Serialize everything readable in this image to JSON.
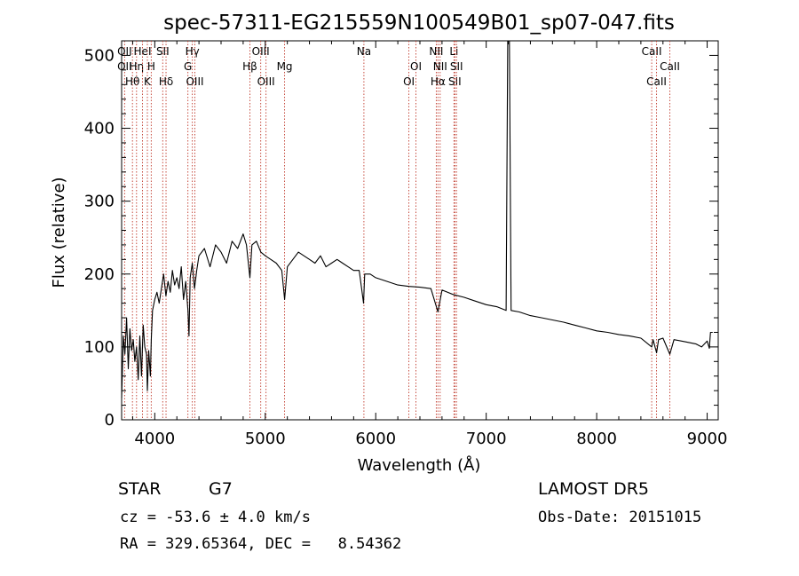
{
  "chart_data": {
    "type": "line",
    "title": "spec-57311-EG215559N100549B01_sp07-047.fits",
    "xlabel": "Wavelength (Å)",
    "ylabel": "Flux (relative)",
    "xlim": [
      3700,
      9100
    ],
    "ylim": [
      0,
      520
    ],
    "xticks": [
      4000,
      5000,
      6000,
      7000,
      8000,
      9000
    ],
    "yticks": [
      0,
      100,
      200,
      300,
      400,
      500
    ],
    "grid": false,
    "series": [
      {
        "values_x": [
          3700,
          3715,
          3730,
          3745,
          3760,
          3775,
          3790,
          3805,
          3820,
          3835,
          3850,
          3865,
          3880,
          3895,
          3910,
          3925,
          3933,
          3945,
          3960,
          3968,
          3980,
          4000,
          4020,
          4040,
          4060,
          4080,
          4101,
          4120,
          4140,
          4160,
          4180,
          4200,
          4220,
          4240,
          4260,
          4280,
          4300,
          4310,
          4320,
          4340,
          4360,
          4380,
          4400,
          4450,
          4500,
          4550,
          4600,
          4650,
          4700,
          4750,
          4800,
          4830,
          4861,
          4880,
          4920,
          4960,
          5000,
          5050,
          5100,
          5150,
          5175,
          5200,
          5250,
          5300,
          5350,
          5400,
          5450,
          5500,
          5550,
          5600,
          5650,
          5700,
          5750,
          5800,
          5850,
          5890,
          5900,
          5950,
          6000,
          6100,
          6200,
          6300,
          6400,
          6500,
          6563,
          6600,
          6700,
          6800,
          6900,
          7000,
          7100,
          7180,
          7195,
          7200,
          7210,
          7225,
          7300,
          7400,
          7500,
          7600,
          7700,
          7800,
          7900,
          8000,
          8100,
          8200,
          8300,
          8400,
          8498,
          8510,
          8542,
          8560,
          8600,
          8662,
          8700,
          8800,
          8900,
          8950,
          9000,
          9020,
          9030,
          9050
        ],
        "values_y": [
          30,
          115,
          90,
          140,
          70,
          125,
          95,
          110,
          80,
          100,
          55,
          115,
          60,
          130,
          100,
          90,
          40,
          95,
          60,
          110,
          150,
          165,
          175,
          160,
          180,
          200,
          170,
          190,
          175,
          205,
          185,
          195,
          180,
          210,
          165,
          190,
          150,
          115,
          195,
          215,
          180,
          205,
          225,
          235,
          210,
          240,
          230,
          215,
          245,
          235,
          255,
          240,
          195,
          240,
          245,
          230,
          225,
          220,
          215,
          205,
          165,
          210,
          220,
          230,
          225,
          220,
          215,
          225,
          210,
          215,
          220,
          215,
          210,
          205,
          205,
          160,
          200,
          200,
          195,
          190,
          185,
          183,
          182,
          180,
          148,
          178,
          172,
          168,
          163,
          158,
          155,
          150,
          520,
          520,
          520,
          150,
          148,
          143,
          140,
          137,
          134,
          130,
          126,
          122,
          120,
          117,
          115,
          112,
          100,
          110,
          92,
          110,
          112,
          90,
          110,
          107,
          104,
          100,
          108,
          98,
          120,
          120
        ]
      }
    ],
    "line_markers": [
      {
        "wavelength": 3727,
        "labels": [
          "OII",
          "OII"
        ]
      },
      {
        "wavelength": 3798,
        "labels": [
          "Hθ"
        ]
      },
      {
        "wavelength": 3835,
        "labels": [
          "Hη"
        ]
      },
      {
        "wavelength": 3889,
        "labels": [
          "HeI"
        ]
      },
      {
        "wavelength": 3933,
        "labels": [
          "K"
        ]
      },
      {
        "wavelength": 3968,
        "labels": [
          "H"
        ]
      },
      {
        "wavelength": 4072,
        "labels": [
          "SII"
        ]
      },
      {
        "wavelength": 4102,
        "labels": [
          "Hδ"
        ]
      },
      {
        "wavelength": 4300,
        "labels": [
          "G"
        ]
      },
      {
        "wavelength": 4340,
        "labels": [
          "Hγ"
        ]
      },
      {
        "wavelength": 4363,
        "labels": [
          "OIII"
        ]
      },
      {
        "wavelength": 4861,
        "labels": [
          "Hβ"
        ]
      },
      {
        "wavelength": 4959,
        "labels": [
          "OIII"
        ]
      },
      {
        "wavelength": 5007,
        "labels": [
          "OIII"
        ]
      },
      {
        "wavelength": 5175,
        "labels": [
          "Mg"
        ]
      },
      {
        "wavelength": 5893,
        "labels": [
          "Na"
        ]
      },
      {
        "wavelength": 6300,
        "labels": [
          "OI"
        ]
      },
      {
        "wavelength": 6364,
        "labels": [
          "OI"
        ]
      },
      {
        "wavelength": 6548,
        "labels": [
          "NII"
        ]
      },
      {
        "wavelength": 6563,
        "labels": [
          "Hα"
        ]
      },
      {
        "wavelength": 6583,
        "labels": [
          "NII"
        ]
      },
      {
        "wavelength": 6708,
        "labels": [
          "Li"
        ]
      },
      {
        "wavelength": 6716,
        "labels": [
          "SII"
        ]
      },
      {
        "wavelength": 6731,
        "labels": [
          "SII"
        ]
      },
      {
        "wavelength": 8498,
        "labels": [
          "CaII"
        ]
      },
      {
        "wavelength": 8542,
        "labels": [
          "CaII"
        ]
      },
      {
        "wavelength": 8662,
        "labels": [
          "CaII"
        ]
      }
    ]
  },
  "info": {
    "class": "STAR",
    "subclass": "G7",
    "survey": "LAMOST DR5",
    "cz": "cz = -53.6 ± 4.0 km/s",
    "obs_date": "Obs-Date: 20151015",
    "coords": "RA = 329.65364, DEC =   8.54362"
  }
}
